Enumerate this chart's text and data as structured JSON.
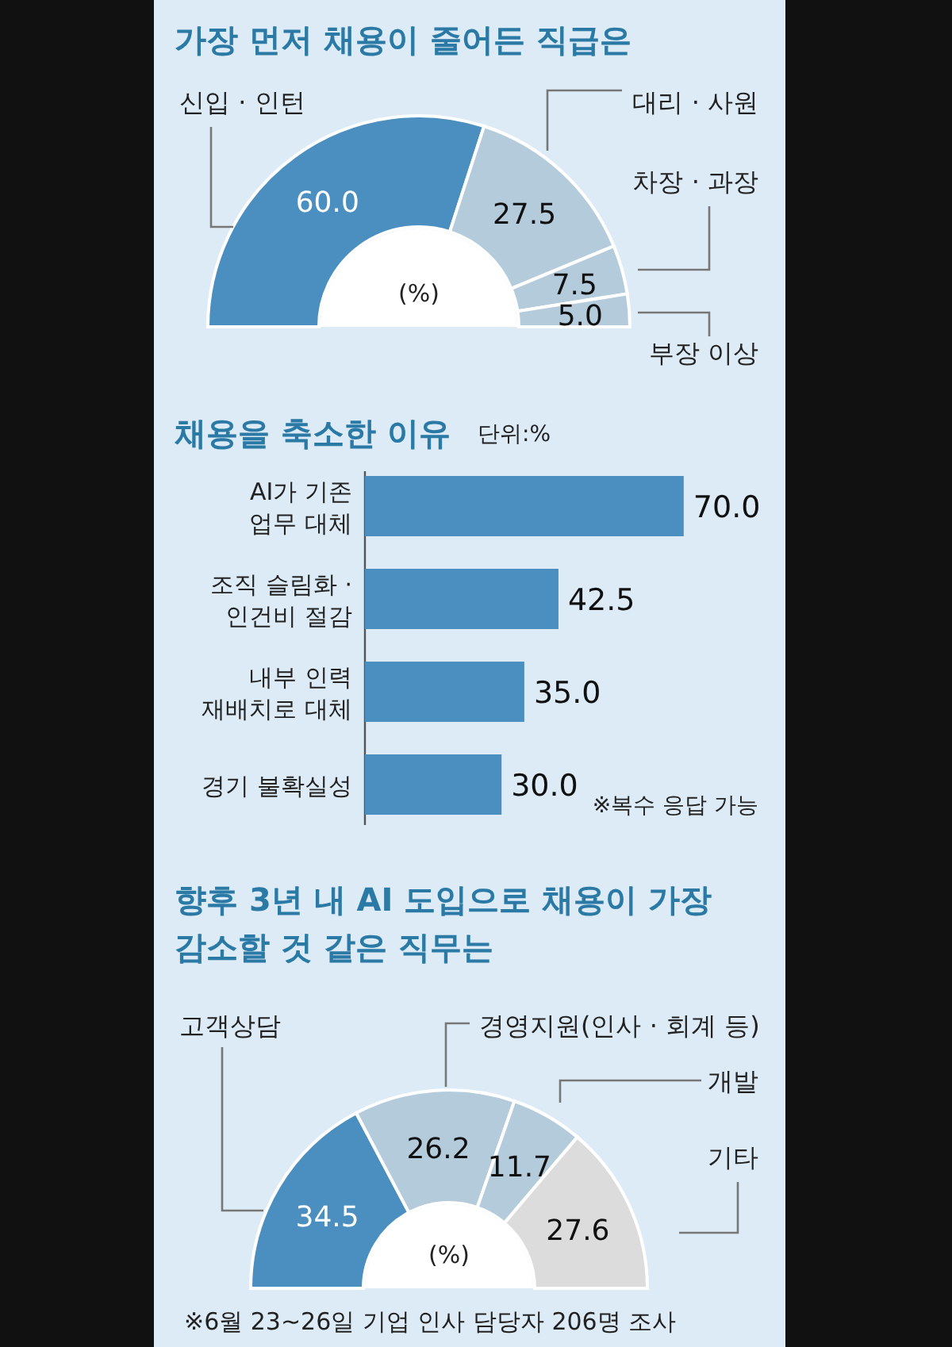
{
  "chart_data": [
    {
      "type": "donut",
      "title": "가장 먼저 채용이 줄어든 직급은",
      "categories": [
        "신입 · 인턴",
        "대리 · 사원",
        "차장 · 과장",
        "부장 이상"
      ],
      "values": [
        60.0,
        27.5,
        7.5,
        5.0
      ],
      "colors": [
        "#4a8fbf",
        "#b3cbdb",
        "#b3cbdb",
        "#b3cbdb"
      ],
      "value_labels": [
        "60.0",
        "27.5",
        "7.5",
        "5.0"
      ],
      "annotations": [
        "(%)"
      ]
    },
    {
      "type": "bar",
      "orientation": "horizontal",
      "title": "채용을 축소한 이유",
      "subtitle": "단위:%",
      "categories": [
        "AI가 기존\n업무 대체",
        "조직 슬림화 ·\n인건비 절감",
        "내부 인력\n재배치로 대체",
        "경기 불확실성"
      ],
      "values": [
        70.0,
        42.5,
        35.0,
        30.0
      ],
      "color": "#4a8fbf",
      "value_labels": [
        "70.0",
        "42.5",
        "35.0",
        "30.0"
      ],
      "annotations": [
        "※복수 응답 가능"
      ]
    },
    {
      "type": "donut",
      "title": "향후 3년 내 AI 도입으로 채용이 가장\n감소할 것 같은 직무는",
      "categories": [
        "고객상담",
        "경영지원(인사 · 회계 등)",
        "개발",
        "기타"
      ],
      "values": [
        34.5,
        26.2,
        11.7,
        27.6
      ],
      "colors": [
        "#4a8fbf",
        "#b3cbdb",
        "#b3cbdb",
        "#dcdcdc"
      ],
      "value_labels": [
        "34.5",
        "26.2",
        "11.7",
        "27.6"
      ],
      "annotations": [
        "(%)",
        "※6월 23~26일 기업 인사 담당자 206명 조사"
      ]
    }
  ]
}
